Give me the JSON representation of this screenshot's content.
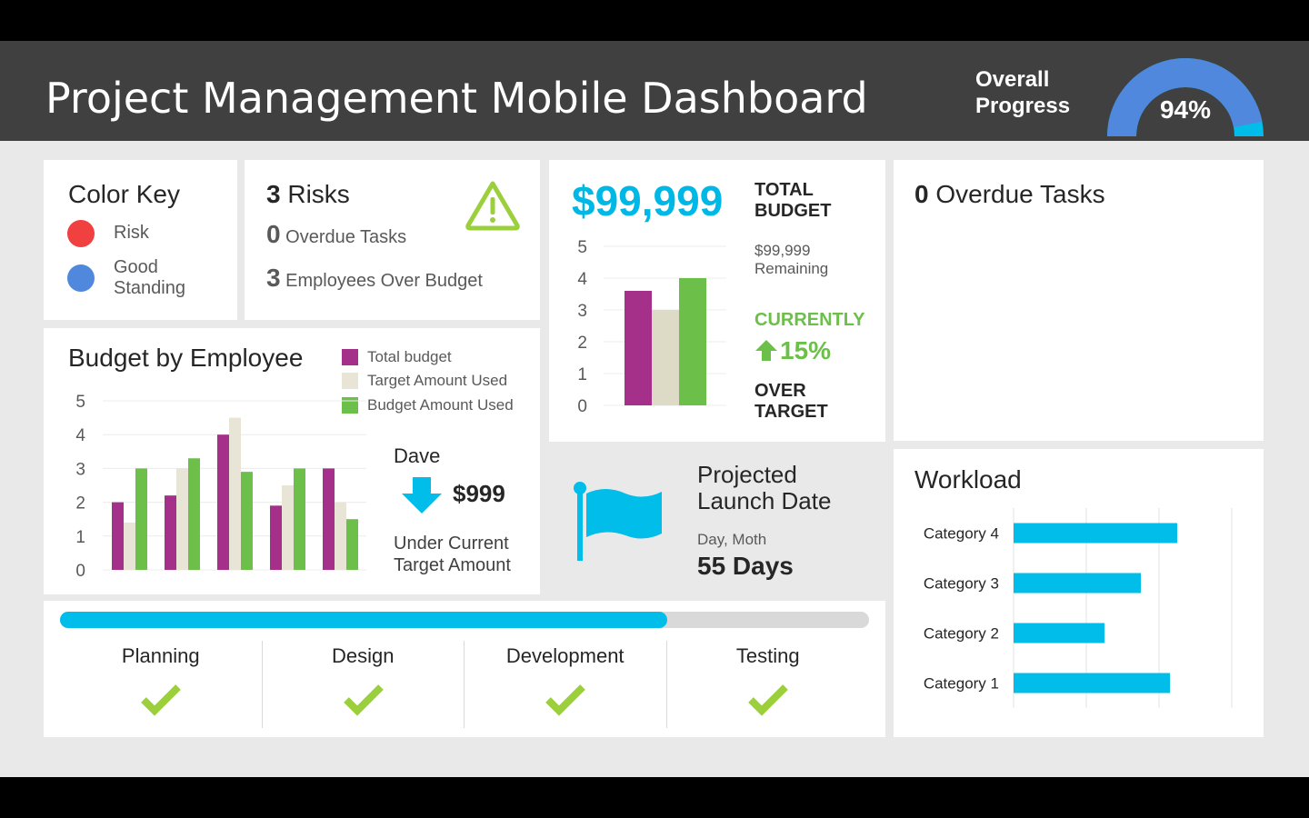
{
  "header": {
    "title": "Project Management Mobile Dashboard",
    "overall_line1": "Overall",
    "overall_line2": "Progress",
    "progress_label": "94%",
    "progress_value": 0.94
  },
  "color_key": {
    "title": "Color Key",
    "items": [
      {
        "label": "Risk",
        "color": "#f04040"
      },
      {
        "label_line1": "Good",
        "label_line2": "Standing",
        "color": "#4f88dc"
      }
    ]
  },
  "risks": {
    "count": "3",
    "label": "Risks",
    "overdue_count": "0",
    "overdue_label": "Overdue Tasks",
    "employees_count": "3",
    "employees_label": "Employees Over Budget",
    "icon": "warning-triangle-icon"
  },
  "total_budget": {
    "amount": "$99,999",
    "label_line1": "TOTAL",
    "label_line2": "BUDGET",
    "remaining_amount": "$99,999",
    "remaining_label": "Remaining",
    "currently": "CURRENTLY",
    "percent": "15%",
    "over_line1": "OVER",
    "over_line2": "TARGET",
    "accent": "#00b8e6",
    "green": "#6cc04a"
  },
  "overdue_panel": {
    "count": "0",
    "label": "Overdue Tasks"
  },
  "budget_by_employee": {
    "title": "Budget by Employee",
    "employee": "Dave",
    "amount": "$999",
    "note_line1": "Under Current",
    "note_line2": "Target Amount",
    "icon": "down-arrow-icon"
  },
  "launch": {
    "title_line1": "Projected",
    "title_line2": "Launch Date",
    "date": "Day, Moth",
    "days": "55 Days",
    "icon": "flag-icon"
  },
  "progress": {
    "fraction": 0.75,
    "phases": [
      "Planning",
      "Design",
      "Development",
      "Testing"
    ],
    "icon": "checkmark-icon"
  },
  "chart_data": [
    {
      "type": "bar",
      "id": "employee-budget",
      "categories": [
        "",
        "",
        "",
        "",
        ""
      ],
      "series": [
        {
          "name": "Total budget",
          "color": "#a5308a",
          "values": [
            2,
            2.2,
            4,
            1.9,
            3
          ]
        },
        {
          "name": "Target Amount Used",
          "color": "#e8e5d6",
          "values": [
            1.4,
            3,
            4.5,
            2.5,
            2
          ]
        },
        {
          "name": "Budget Amount Used",
          "color": "#6cc04a",
          "values": [
            3,
            3.3,
            2.9,
            3,
            1.5
          ]
        }
      ],
      "yticks": [
        "0",
        "1",
        "2",
        "3",
        "4",
        "5"
      ],
      "ylim": [
        0,
        5
      ]
    },
    {
      "type": "bar",
      "id": "total-budget",
      "categories": [
        ""
      ],
      "series": [
        {
          "name": "",
          "color": "#a5308a",
          "values": [
            3.6
          ]
        },
        {
          "name": "",
          "color": "#dddac6",
          "values": [
            3
          ]
        },
        {
          "name": "",
          "color": "#6cc04a",
          "values": [
            4
          ]
        }
      ],
      "yticks": [
        "0",
        "1",
        "2",
        "3",
        "4",
        "5"
      ],
      "ylim": [
        0,
        5
      ]
    },
    {
      "type": "bar",
      "id": "workload",
      "orientation": "horizontal",
      "title": "Workload",
      "categories": [
        "Category 4",
        "Category 3",
        "Category 2",
        "Category 1"
      ],
      "values": [
        4.5,
        3.5,
        2.5,
        4.3
      ],
      "xlim": [
        0,
        6
      ],
      "color": "#00bde9"
    }
  ]
}
